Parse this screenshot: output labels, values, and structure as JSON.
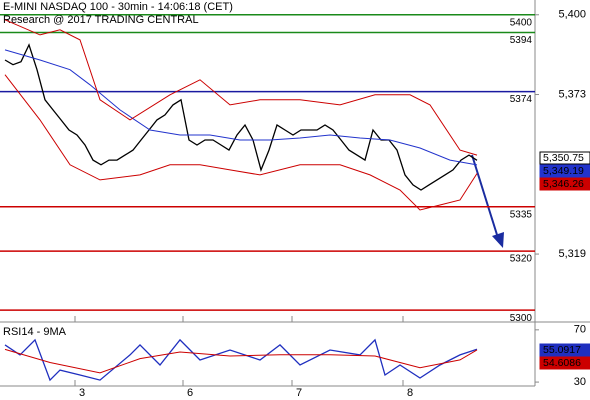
{
  "chart_data": [
    {
      "type": "line",
      "title": "E-MINI NASDAQ 100 - 30min - 14:06:18 (CET)",
      "subtitle": "Research @ 2017 TRADING CENTRAL",
      "xlim": [
        -0.625,
        66.25
      ],
      "ylim": [
        5296,
        5405
      ],
      "yticks": [
        {
          "value": 5400,
          "label": "5,400"
        },
        {
          "value": 5373,
          "label": "5,373"
        },
        {
          "value": 5319,
          "label": "5,319"
        }
      ],
      "series": [
        {
          "color": "#000000",
          "x": [
            0,
            1,
            2,
            3,
            4,
            5,
            6,
            7,
            8,
            9,
            10,
            11,
            12,
            13,
            14,
            15,
            16,
            17,
            18,
            19,
            20,
            21,
            22,
            23,
            24,
            25,
            26,
            27,
            28,
            29,
            30,
            31,
            32,
            33,
            34,
            35,
            36,
            37,
            38,
            39,
            40,
            41,
            42,
            43,
            44,
            45,
            46,
            47,
            48,
            49,
            50,
            51,
            52,
            53,
            54,
            55,
            56,
            57,
            58,
            59
          ],
          "values": [
            5384.7,
            5383.1,
            5384.1,
            5389.8,
            5381.4,
            5371.2,
            5367.8,
            5364.4,
            5361.0,
            5359.3,
            5355.9,
            5350.8,
            5349.2,
            5350.8,
            5350.8,
            5352.5,
            5354.2,
            5357.6,
            5361.0,
            5364.4,
            5366.1,
            5369.5,
            5371.2,
            5357.6,
            5355.9,
            5357.6,
            5357.6,
            5355.9,
            5354.2,
            5359.3,
            5362.7,
            5357.6,
            5347.5,
            5354.2,
            5362.7,
            5361.0,
            5359.3,
            5361.0,
            5361.0,
            5361.0,
            5362.7,
            5361.0,
            5357.6,
            5354.2,
            5352.5,
            5350.8,
            5361.0,
            5357.6,
            5357.6,
            5354.2,
            5345.8,
            5342.4,
            5340.7,
            5342.4,
            5344.1,
            5345.8,
            5347.5,
            5350.8,
            5352.5,
            5350.75
          ]
        },
        {
          "color": "#2233cc",
          "x": [
            0,
            4.375,
            8.125,
            10.625,
            14.375,
            18.125,
            21.875,
            25.625,
            29.375,
            33.125,
            36.875,
            40.625,
            44.375,
            48.125,
            51.875,
            55.625,
            59
          ],
          "values": [
            5388.1,
            5384.7,
            5381.4,
            5376.3,
            5367.8,
            5361.0,
            5359.3,
            5359.3,
            5357.6,
            5357.6,
            5358.3,
            5359.3,
            5358.3,
            5357.6,
            5354.9,
            5350.8,
            5349.19
          ]
        },
        {
          "color": "#cc0000",
          "x": [
            0,
            4.375,
            6.875,
            9.375,
            11.875,
            15.625,
            20.625,
            24.375,
            28.125,
            31.875,
            36.875,
            41.875,
            46.25,
            50.625,
            53.125,
            56.875,
            59
          ],
          "values": [
            5398.3,
            5393.2,
            5394.9,
            5391.5,
            5371.2,
            5364.4,
            5372.9,
            5378.0,
            5369.5,
            5371.2,
            5371.2,
            5369.5,
            5372.9,
            5372.9,
            5369.5,
            5354.2,
            5352.5
          ]
        },
        {
          "color": "#cc0000",
          "x": [
            0,
            4.375,
            8.125,
            11.875,
            16.875,
            20.625,
            24.375,
            28.125,
            31.875,
            36.875,
            41.875,
            45.625,
            49.375,
            51.875,
            54.375,
            56.875,
            59
          ],
          "values": [
            5379.7,
            5364.4,
            5349.2,
            5344.1,
            5345.8,
            5349.2,
            5349.2,
            5347.5,
            5345.8,
            5349.2,
            5349.2,
            5345.8,
            5340.7,
            5333.9,
            5335.6,
            5337.3,
            5346.26
          ]
        }
      ],
      "levels": [
        {
          "value": 5400,
          "color": "#1a8a1a"
        },
        {
          "value": 5394,
          "color": "#1a8a1a"
        },
        {
          "value": 5374,
          "color": "#1a1aa0"
        },
        {
          "value": 5335,
          "color": "#cc0000"
        },
        {
          "value": 5320,
          "color": "#cc0000"
        },
        {
          "value": 5300,
          "color": "#cc0000"
        }
      ],
      "price_tags": [
        {
          "value": 5350.75,
          "label": "5,350.75",
          "color": "#000000"
        },
        {
          "value": 5349.19,
          "label": "5,349.19",
          "color": "#2233cc"
        },
        {
          "value": 5346.26,
          "label": "5,346.26",
          "color": "#cc0000"
        }
      ]
    },
    {
      "type": "line",
      "title": "RSI14 - 9MA",
      "xlim": [
        -0.625,
        66.25
      ],
      "ylim": [
        27,
        76
      ],
      "yticks": [
        70,
        30
      ],
      "xticks": [
        {
          "value": 8.75,
          "label": "3"
        },
        {
          "value": 22.25,
          "label": "6"
        },
        {
          "value": 35.875,
          "label": "7"
        },
        {
          "value": 49.75,
          "label": "8"
        }
      ],
      "series": [
        {
          "color": "#1f2fbf",
          "x": [
            0,
            1.875,
            3.75,
            5.625,
            6.875,
            9.375,
            11.875,
            15.625,
            16.875,
            19.375,
            21.875,
            24.375,
            28.125,
            31.875,
            34.375,
            36.875,
            40.625,
            44.375,
            46.25,
            47.5,
            49.375,
            51.875,
            54.375,
            56.875,
            59
          ],
          "values": [
            58.5,
            50.8,
            62.3,
            31.5,
            39.2,
            35.4,
            31.5,
            50.8,
            58.5,
            43.1,
            62.3,
            46.9,
            54.6,
            46.9,
            58.5,
            43.1,
            54.6,
            50.8,
            62.3,
            35.4,
            43.1,
            33.1,
            43.1,
            50.8,
            55.0917
          ]
        },
        {
          "color": "#cc0000",
          "x": [
            0,
            5.625,
            11.875,
            16.875,
            21.875,
            28.125,
            34.375,
            40.625,
            46.25,
            51.875,
            56.875,
            59
          ],
          "values": [
            55,
            45,
            37,
            48,
            53,
            50,
            51,
            51,
            50,
            41,
            47,
            54.6086
          ]
        }
      ],
      "price_tags": [
        {
          "value": 55.0917,
          "color": "#1f2fbf"
        },
        {
          "value": 54.6086,
          "color": "#cc0000"
        }
      ]
    }
  ]
}
